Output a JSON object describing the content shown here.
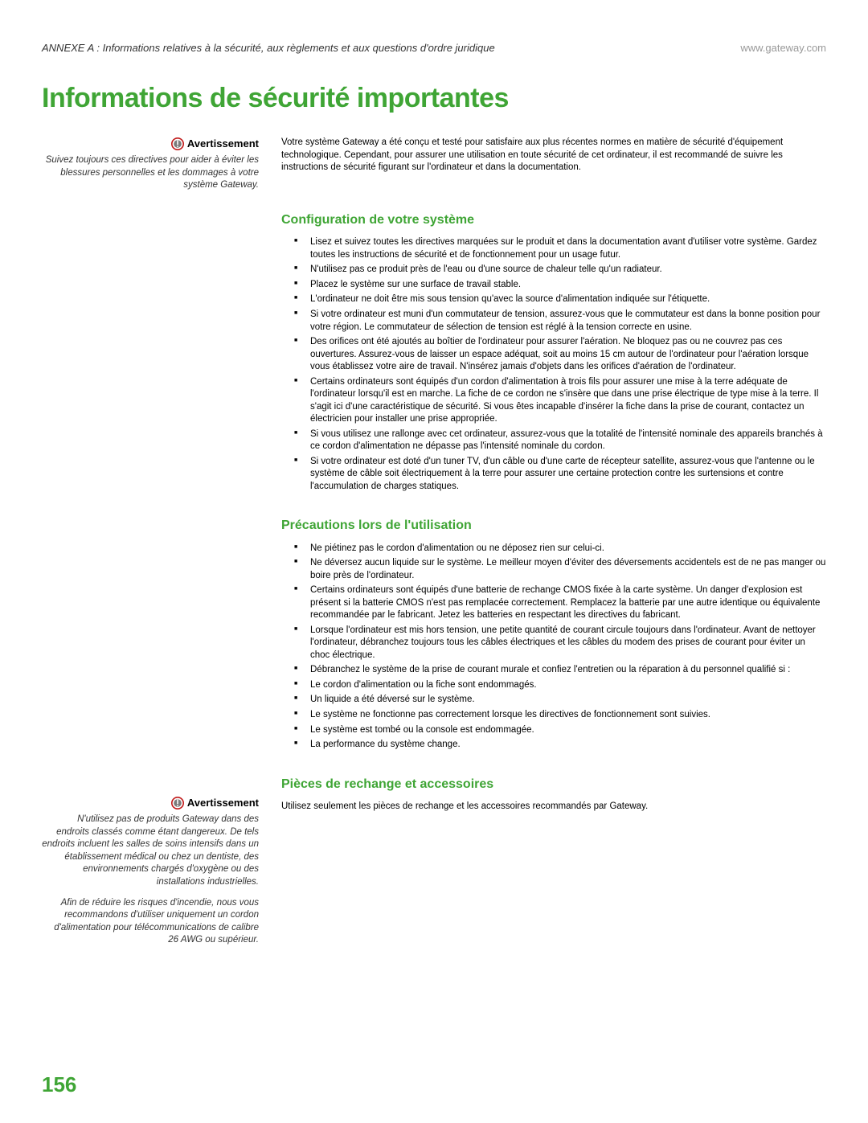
{
  "colors": {
    "accent": "#3fa535",
    "text": "#000000",
    "muted": "#999999",
    "italic_text": "#333333",
    "background": "#ffffff",
    "warning_ring": "#c01818",
    "warning_fill": "#7a7a7a"
  },
  "typography": {
    "body_fontsize_pt": 9,
    "title_fontsize_pt": 26,
    "section_title_fontsize_pt": 12,
    "page_number_fontsize_pt": 20
  },
  "header": {
    "annex_line": "ANNEXE A : Informations relatives à la sécurité, aux règlements et aux questions d'ordre juridique",
    "site_url": "www.gateway.com"
  },
  "title": "Informations de sécurité importantes",
  "warning_label": "Avertissement",
  "sidebar_warning_1": {
    "paragraphs": [
      "Suivez toujours ces directives pour aider à éviter les blessures personnelles et les dommages à votre système Gateway."
    ]
  },
  "sidebar_warning_2": {
    "paragraphs": [
      "N'utilisez pas de produits Gateway dans des endroits classés comme étant dangereux. De tels endroits incluent les salles de soins intensifs dans un établissement médical ou chez un dentiste, des environnements chargés d'oxygène ou des installations industrielles.",
      "Afin de réduire les risques d'incendie, nous vous recommandons d'utiliser uniquement un cordon d'alimentation pour télécommunications de calibre 26 AWG ou supérieur."
    ]
  },
  "intro": "Votre système Gateway a été conçu et testé pour satisfaire aux plus récentes normes en matière de sécurité d'équipement technologique. Cependant, pour assurer une utilisation en toute sécurité de cet ordinateur, il est recommandé de suivre les instructions de sécurité figurant sur l'ordinateur et dans la documentation.",
  "sections": {
    "config": {
      "title": "Configuration de votre système",
      "bullets": [
        "Lisez et suivez toutes les directives marquées sur le produit et dans la documentation avant d'utiliser votre système. Gardez toutes les instructions de sécurité et de fonctionnement pour un usage futur.",
        "N'utilisez pas ce produit près de l'eau ou d'une source de chaleur telle qu'un radiateur.",
        "Placez le système sur une surface de travail stable.",
        "L'ordinateur ne doit être mis sous tension qu'avec la source d'alimentation indiquée sur l'étiquette.",
        "Si votre ordinateur est muni d'un commutateur de tension, assurez-vous que le commutateur est dans la bonne position pour votre région. Le commutateur de sélection de tension est réglé à la tension correcte en usine.",
        "Des orifices ont été ajoutés au boîtier de l'ordinateur pour assurer l'aération. Ne bloquez pas ou ne couvrez pas ces ouvertures. Assurez-vous de laisser un espace adéquat, soit au moins 15 cm autour de l'ordinateur pour l'aération lorsque vous établissez votre aire de travail. N'insérez jamais d'objets dans les orifices d'aération de l'ordinateur.",
        "Certains ordinateurs sont équipés d'un cordon d'alimentation à trois fils pour assurer une mise à la terre adéquate de l'ordinateur lorsqu'il est en marche. La fiche de ce cordon ne s'insère que dans une prise électrique de type mise à la terre. Il s'agit ici d'une caractéristique de sécurité. Si vous êtes incapable d'insérer la fiche dans la prise de courant, contactez un électricien pour installer une prise appropriée.",
        "Si vous utilisez une rallonge avec cet ordinateur, assurez-vous que la totalité de l'intensité nominale des appareils branchés à ce cordon d'alimentation ne dépasse pas l'intensité nominale du cordon.",
        "Si votre ordinateur est doté d'un tuner TV, d'un câble ou d'une carte de récepteur satellite, assurez-vous que l'antenne ou le système de câble soit électriquement à la terre pour assurer une certaine protection contre les surtensions et contre l'accumulation de charges statiques."
      ]
    },
    "precautions": {
      "title": "Précautions lors de l'utilisation",
      "bullets": [
        "Ne piétinez pas le cordon d'alimentation ou ne déposez rien sur celui-ci.",
        "Ne déversez aucun liquide sur le système. Le meilleur moyen d'éviter des déversements accidentels est de ne pas manger ou boire près de l'ordinateur.",
        "Certains ordinateurs sont équipés d'une batterie de rechange CMOS fixée à la carte système. Un danger d'explosion est présent si la batterie CMOS n'est pas remplacée correctement. Remplacez la batterie par une autre identique ou équivalente recommandée par le fabricant. Jetez les batteries en respectant les directives du fabricant.",
        "Lorsque l'ordinateur est mis hors tension, une petite quantité de courant circule toujours dans l'ordinateur. Avant de nettoyer l'ordinateur, débranchez toujours tous les câbles électriques et les câbles du modem des prises de courant pour éviter un choc électrique.",
        "Débranchez le système de la prise de courant murale et confiez l'entretien ou la réparation à du personnel qualifié si :",
        "Le cordon d'alimentation ou la fiche sont endommagés.",
        "Un liquide a été déversé sur le système.",
        "Le système ne fonctionne pas correctement lorsque les directives de fonctionnement sont suivies.",
        "Le système est tombé ou la console est endommagée.",
        "La performance du système change."
      ]
    },
    "parts": {
      "title": "Pièces de rechange et accessoires",
      "body": "Utilisez seulement les pièces de rechange et les accessoires recommandés par Gateway."
    }
  },
  "page_number": "156"
}
